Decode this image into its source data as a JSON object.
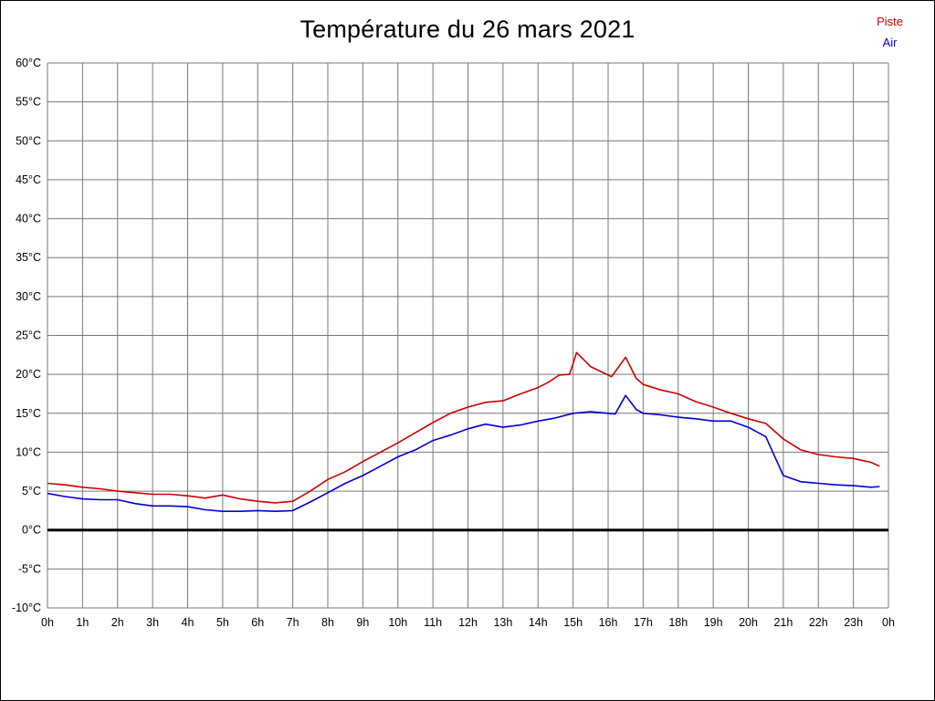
{
  "page": {
    "title": "Température du 26 mars 2021"
  },
  "legend": [
    {
      "label": "Piste",
      "color": "#cc0000"
    },
    {
      "label": "Air",
      "color": "#0000cc"
    }
  ],
  "chart_data": {
    "type": "line",
    "title": "Température du 26 mars 2021",
    "xlabel": "",
    "ylabel": "",
    "x_unit": "hours",
    "xlim": [
      0,
      24
    ],
    "ylim": [
      -10,
      60
    ],
    "grid": true,
    "grid_color": "#777777",
    "legend_position": "top-right",
    "zero_line_value": 0,
    "zero_line_color": "#000000",
    "x_ticks": [
      "0h",
      "1h",
      "2h",
      "3h",
      "4h",
      "5h",
      "6h",
      "7h",
      "8h",
      "9h",
      "10h",
      "11h",
      "12h",
      "13h",
      "14h",
      "15h",
      "16h",
      "17h",
      "18h",
      "19h",
      "20h",
      "21h",
      "22h",
      "23h",
      "0h"
    ],
    "y_ticks": [
      {
        "value": 60,
        "label": "60°C"
      },
      {
        "value": 55,
        "label": "55°C"
      },
      {
        "value": 50,
        "label": "50°C"
      },
      {
        "value": 45,
        "label": "45°C"
      },
      {
        "value": 40,
        "label": "40°C"
      },
      {
        "value": 35,
        "label": "35°C"
      },
      {
        "value": 30,
        "label": "30°C"
      },
      {
        "value": 25,
        "label": "25°C"
      },
      {
        "value": 20,
        "label": "20°C"
      },
      {
        "value": 15,
        "label": "15°C"
      },
      {
        "value": 10,
        "label": "10°C"
      },
      {
        "value": 5,
        "label": "5°C"
      },
      {
        "value": 0,
        "label": "0°C"
      },
      {
        "value": -5,
        "label": "-5°C"
      },
      {
        "value": -10,
        "label": "-10°C"
      }
    ],
    "series": [
      {
        "name": "Piste",
        "color": "#cc0000",
        "points": [
          [
            0,
            6.0
          ],
          [
            0.5,
            5.8
          ],
          [
            1,
            5.5
          ],
          [
            1.5,
            5.3
          ],
          [
            2,
            5.0
          ],
          [
            2.5,
            4.8
          ],
          [
            3,
            4.6
          ],
          [
            3.5,
            4.6
          ],
          [
            4,
            4.4
          ],
          [
            4.5,
            4.1
          ],
          [
            5,
            4.5
          ],
          [
            5.5,
            4.0
          ],
          [
            6,
            3.7
          ],
          [
            6.5,
            3.5
          ],
          [
            7,
            3.7
          ],
          [
            7.5,
            5.0
          ],
          [
            8,
            6.5
          ],
          [
            8.5,
            7.5
          ],
          [
            9,
            8.8
          ],
          [
            9.5,
            10.0
          ],
          [
            10,
            11.2
          ],
          [
            10.5,
            12.5
          ],
          [
            11,
            13.8
          ],
          [
            11.5,
            15.0
          ],
          [
            12,
            15.8
          ],
          [
            12.5,
            16.4
          ],
          [
            13,
            16.6
          ],
          [
            13.5,
            17.5
          ],
          [
            14,
            18.3
          ],
          [
            14.3,
            19.0
          ],
          [
            14.6,
            19.9
          ],
          [
            14.9,
            20.0
          ],
          [
            15.1,
            22.8
          ],
          [
            15.5,
            21.0
          ],
          [
            16.1,
            19.7
          ],
          [
            16.5,
            22.2
          ],
          [
            16.8,
            19.5
          ],
          [
            17,
            18.7
          ],
          [
            17.5,
            18.0
          ],
          [
            18,
            17.5
          ],
          [
            18.5,
            16.5
          ],
          [
            19,
            15.8
          ],
          [
            19.5,
            15.0
          ],
          [
            20,
            14.3
          ],
          [
            20.5,
            13.7
          ],
          [
            21,
            11.7
          ],
          [
            21.5,
            10.3
          ],
          [
            22,
            9.7
          ],
          [
            22.5,
            9.4
          ],
          [
            23,
            9.2
          ],
          [
            23.5,
            8.7
          ],
          [
            23.75,
            8.2
          ]
        ]
      },
      {
        "name": "Air",
        "color": "#0000cc",
        "points": [
          [
            0,
            4.7
          ],
          [
            0.5,
            4.3
          ],
          [
            1,
            4.0
          ],
          [
            1.5,
            3.9
          ],
          [
            2,
            3.9
          ],
          [
            2.5,
            3.4
          ],
          [
            3,
            3.1
          ],
          [
            3.5,
            3.1
          ],
          [
            4,
            3.0
          ],
          [
            4.5,
            2.6
          ],
          [
            5,
            2.4
          ],
          [
            5.5,
            2.4
          ],
          [
            6,
            2.5
          ],
          [
            6.5,
            2.4
          ],
          [
            7,
            2.5
          ],
          [
            7.5,
            3.6
          ],
          [
            8,
            4.8
          ],
          [
            8.5,
            6.0
          ],
          [
            9,
            7.0
          ],
          [
            9.5,
            8.2
          ],
          [
            10,
            9.4
          ],
          [
            10.5,
            10.3
          ],
          [
            11,
            11.5
          ],
          [
            11.5,
            12.2
          ],
          [
            12,
            13.0
          ],
          [
            12.5,
            13.6
          ],
          [
            13,
            13.2
          ],
          [
            13.5,
            13.5
          ],
          [
            14,
            14.0
          ],
          [
            14.5,
            14.4
          ],
          [
            15,
            15.0
          ],
          [
            15.5,
            15.2
          ],
          [
            16,
            15.0
          ],
          [
            16.2,
            14.9
          ],
          [
            16.5,
            17.3
          ],
          [
            16.8,
            15.5
          ],
          [
            17,
            15.0
          ],
          [
            17.5,
            14.8
          ],
          [
            18,
            14.5
          ],
          [
            18.5,
            14.3
          ],
          [
            19,
            14.0
          ],
          [
            19.5,
            14.0
          ],
          [
            20,
            13.2
          ],
          [
            20.5,
            12.0
          ],
          [
            21,
            7.0
          ],
          [
            21.5,
            6.2
          ],
          [
            22,
            6.0
          ],
          [
            22.5,
            5.8
          ],
          [
            23,
            5.7
          ],
          [
            23.5,
            5.5
          ],
          [
            23.75,
            5.6
          ]
        ]
      }
    ]
  }
}
